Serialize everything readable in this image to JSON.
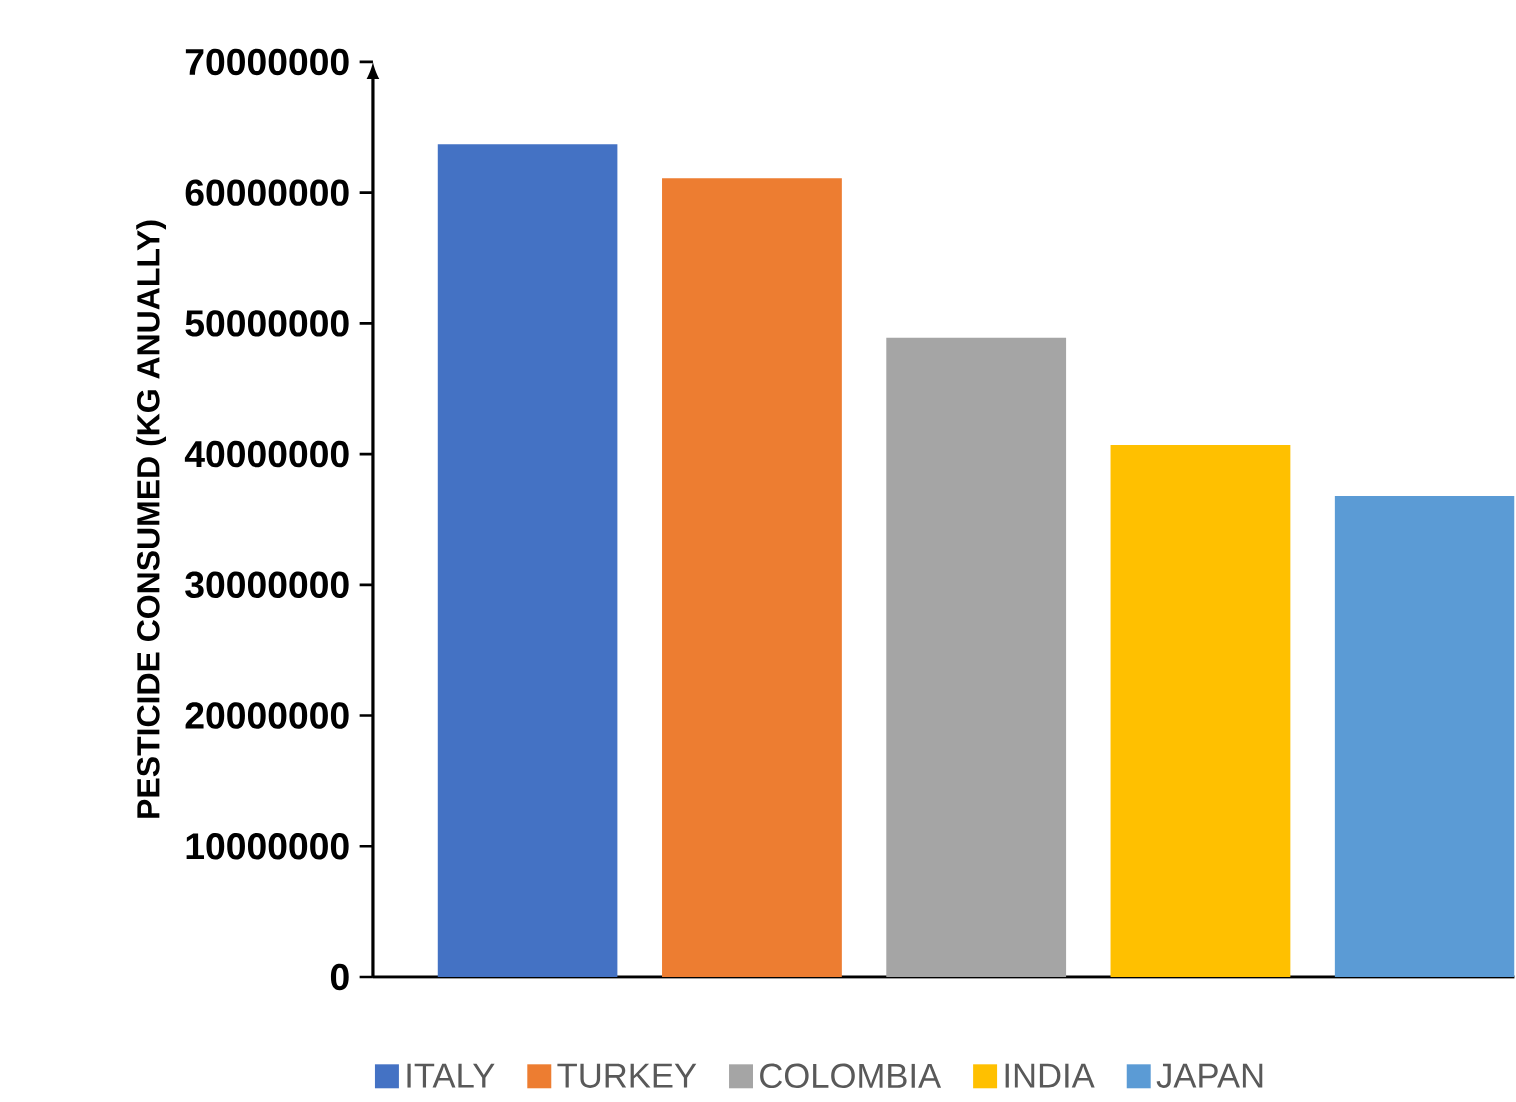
{
  "chart_data": {
    "type": "bar",
    "ylabel": "PESTICIDE CONSUMED (KG ANUALLY)",
    "categories": [
      null,
      null,
      null,
      null,
      null
    ],
    "series": [
      {
        "name": "ITALY",
        "color": "#4472c4",
        "values": [
          63700000,
          null,
          null,
          null,
          null
        ]
      },
      {
        "name": "TURKEY",
        "color": "#ed7d31",
        "values": [
          null,
          61100000,
          null,
          null,
          null
        ]
      },
      {
        "name": "COLOMBIA",
        "color": "#a5a5a5",
        "values": [
          null,
          null,
          48900000,
          null,
          null
        ]
      },
      {
        "name": "INDIA",
        "color": "#ffc000",
        "values": [
          null,
          null,
          null,
          40700000,
          null
        ]
      },
      {
        "name": "JAPAN",
        "color": "#5b9bd5",
        "values": [
          null,
          null,
          null,
          null,
          36800000
        ]
      }
    ],
    "ylim": [
      0,
      70000000
    ],
    "yticks": [
      0,
      10000000,
      20000000,
      30000000,
      40000000,
      50000000,
      60000000,
      70000000
    ],
    "legend": "bottom",
    "grid": false
  }
}
